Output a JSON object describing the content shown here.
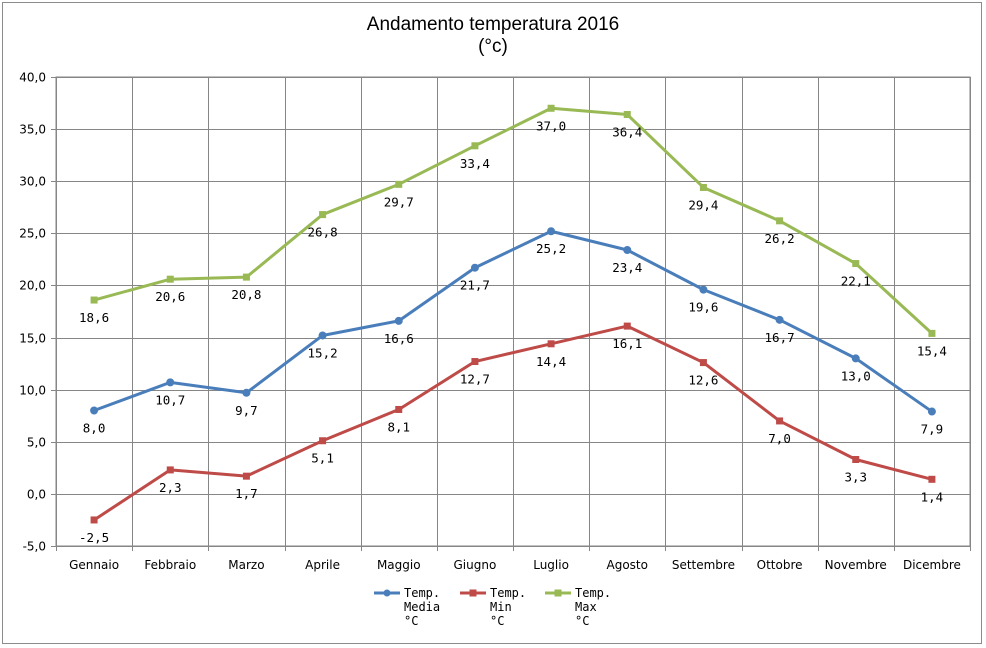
{
  "chart_data": {
    "type": "line",
    "title": "Andamento temperatura 2016",
    "subtitle": "(°c)",
    "categories": [
      "Gennaio",
      "Febbraio",
      "Marzo",
      "Aprile",
      "Maggio",
      "Giugno",
      "Luglio",
      "Agosto",
      "Settembre",
      "Ottobre",
      "Novembre",
      "Dicembre"
    ],
    "ylim": [
      -5,
      40
    ],
    "yticks": [
      -5,
      0,
      5,
      10,
      15,
      20,
      25,
      30,
      35,
      40
    ],
    "ytick_labels": [
      "-5,0",
      "0,0",
      "5,0",
      "10,0",
      "15,0",
      "20,0",
      "25,0",
      "30,0",
      "35,0",
      "40,0"
    ],
    "grid": true,
    "legend_position": "bottom",
    "series": [
      {
        "name_lines": [
          "Temp.",
          "Media",
          "°C"
        ],
        "color": "#4a7ebb",
        "marker": "circle",
        "values": [
          8.0,
          10.7,
          9.7,
          15.2,
          16.6,
          21.7,
          25.2,
          23.4,
          19.6,
          16.7,
          13.0,
          7.9
        ],
        "labels": [
          "8,0",
          "10,7",
          "9,7",
          "15,2",
          "16,6",
          "21,7",
          "25,2",
          "23,4",
          "19,6",
          "16,7",
          "13,0",
          "7,9"
        ]
      },
      {
        "name_lines": [
          "Temp.",
          "Min",
          "°C"
        ],
        "color": "#be4b48",
        "marker": "square",
        "values": [
          -2.5,
          2.3,
          1.7,
          5.1,
          8.1,
          12.7,
          14.4,
          16.1,
          12.6,
          7.0,
          3.3,
          1.4
        ],
        "labels": [
          "-2,5",
          "2,3",
          "1,7",
          "5,1",
          "8,1",
          "12,7",
          "14,4",
          "16,1",
          "12,6",
          "7,0",
          "3,3",
          "1,4"
        ]
      },
      {
        "name_lines": [
          "Temp.",
          "Max",
          "°C"
        ],
        "color": "#98b954",
        "marker": "square",
        "values": [
          18.6,
          20.6,
          20.8,
          26.8,
          29.7,
          33.4,
          37.0,
          36.4,
          29.4,
          26.2,
          22.1,
          15.4
        ],
        "labels": [
          "18,6",
          "20,6",
          "20,8",
          "26,8",
          "29,7",
          "33,4",
          "37,0",
          "36,4",
          "29,4",
          "26,2",
          "22,1",
          "15,4"
        ]
      }
    ]
  }
}
